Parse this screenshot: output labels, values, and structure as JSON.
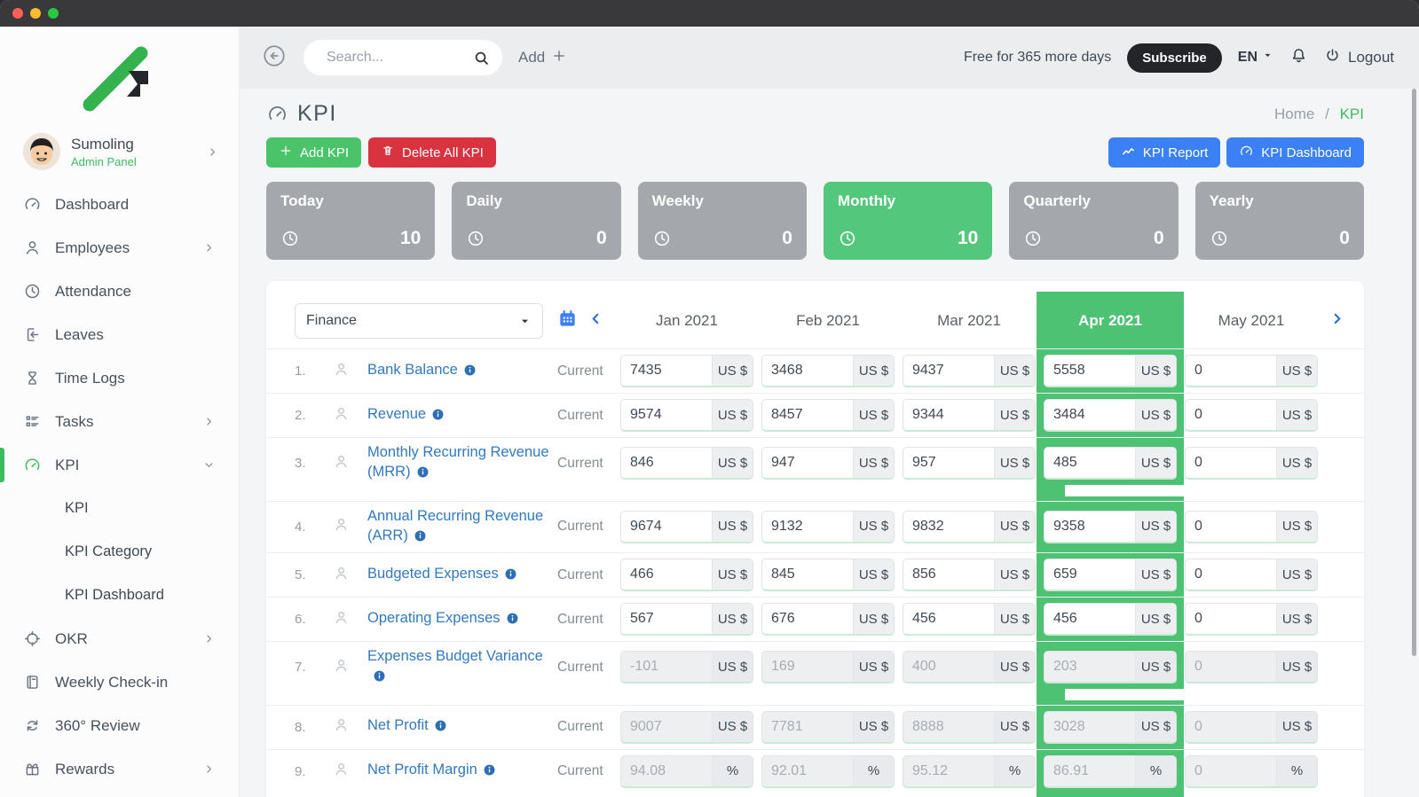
{
  "topbar": {
    "search_placeholder": "Search...",
    "add_label": "Add",
    "trial_text": "Free for 365 more days",
    "subscribe_label": "Subscribe",
    "language": "EN",
    "logout_label": "Logout"
  },
  "sidebar": {
    "company_name": "Sumoling",
    "panel_label": "Admin Panel",
    "items": [
      {
        "label": "Dashboard",
        "icon": "gauge"
      },
      {
        "label": "Employees",
        "icon": "person",
        "chevron": "right"
      },
      {
        "label": "Attendance",
        "icon": "clock"
      },
      {
        "label": "Leaves",
        "icon": "leave"
      },
      {
        "label": "Time Logs",
        "icon": "hourglass"
      },
      {
        "label": "Tasks",
        "icon": "tasks",
        "chevron": "right"
      },
      {
        "label": "KPI",
        "icon": "gauge",
        "chevron": "down",
        "active": true
      },
      {
        "label": "KPI",
        "child": true
      },
      {
        "label": "KPI Category",
        "child": true
      },
      {
        "label": "KPI Dashboard",
        "child": true
      },
      {
        "label": "OKR",
        "icon": "target",
        "chevron": "right"
      },
      {
        "label": "Weekly Check-in",
        "icon": "notebook"
      },
      {
        "label": "360° Review",
        "icon": "cycle"
      },
      {
        "label": "Rewards",
        "icon": "gift",
        "chevron": "right"
      }
    ]
  },
  "page": {
    "title": "KPI",
    "breadcrumb_home": "Home",
    "breadcrumb_sep": "/",
    "breadcrumb_current": "KPI",
    "add_kpi_label": "Add KPI",
    "delete_all_label": "Delete All KPI",
    "kpi_report_label": "KPI Report",
    "kpi_dashboard_label": "KPI Dashboard"
  },
  "summary_cards": [
    {
      "label": "Today",
      "count": "10",
      "active": false
    },
    {
      "label": "Daily",
      "count": "0",
      "active": false
    },
    {
      "label": "Weekly",
      "count": "0",
      "active": false
    },
    {
      "label": "Monthly",
      "count": "10",
      "active": true
    },
    {
      "label": "Quarterly",
      "count": "0",
      "active": false
    },
    {
      "label": "Yearly",
      "count": "0",
      "active": false
    }
  ],
  "table": {
    "category_filter": "Finance",
    "current_label": "Current",
    "months": [
      "Jan 2021",
      "Feb 2021",
      "Mar 2021",
      "Apr 2021",
      "May 2021"
    ],
    "active_month_index": 3,
    "rows": [
      {
        "num": "1.",
        "name": "Bank Balance",
        "unit": "US $",
        "disabled": false,
        "values": [
          "7435",
          "3468",
          "9437",
          "5558",
          "0"
        ]
      },
      {
        "num": "2.",
        "name": "Revenue",
        "unit": "US $",
        "disabled": false,
        "values": [
          "9574",
          "8457",
          "9344",
          "3484",
          "0"
        ]
      },
      {
        "num": "3.",
        "name": "Monthly Recurring Revenue (MRR)",
        "unit": "US $",
        "disabled": false,
        "values": [
          "846",
          "947",
          "957",
          "485",
          "0"
        ]
      },
      {
        "num": "4.",
        "name": "Annual Recurring Revenue (ARR)",
        "unit": "US $",
        "disabled": false,
        "values": [
          "9674",
          "9132",
          "9832",
          "9358",
          "0"
        ]
      },
      {
        "num": "5.",
        "name": "Budgeted Expenses",
        "unit": "US $",
        "disabled": false,
        "values": [
          "466",
          "845",
          "856",
          "659",
          "0"
        ]
      },
      {
        "num": "6.",
        "name": "Operating Expenses",
        "unit": "US $",
        "disabled": false,
        "values": [
          "567",
          "676",
          "456",
          "456",
          "0"
        ]
      },
      {
        "num": "7.",
        "name": "Expenses Budget Variance",
        "unit": "US $",
        "disabled": true,
        "values": [
          "-101",
          "169",
          "400",
          "203",
          "0"
        ]
      },
      {
        "num": "8.",
        "name": "Net Profit",
        "unit": "US $",
        "disabled": true,
        "values": [
          "9007",
          "7781",
          "8888",
          "3028",
          "0"
        ]
      },
      {
        "num": "9.",
        "name": "Net Profit Margin",
        "unit": "%",
        "disabled": true,
        "values": [
          "94.08",
          "92.01",
          "95.12",
          "86.91",
          "0"
        ]
      }
    ]
  },
  "colors": {
    "green": "#4BC36B",
    "card_green": "#53C87C",
    "band_green": "#4EC273",
    "blue": "#3C80F6",
    "red": "#D8333F",
    "card_gray": "#A4A8AD",
    "link_blue": "#3279BE",
    "dark_pill": "#232528"
  }
}
